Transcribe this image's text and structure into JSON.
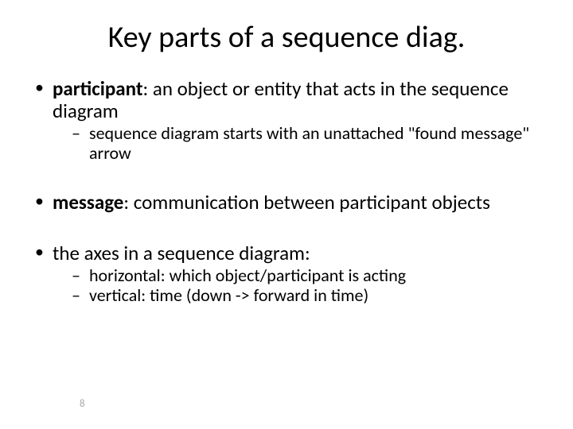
{
  "title": "Key parts of a sequence diag.",
  "bullets": {
    "b1_term": "participant",
    "b1_rest": ": an object or entity that acts in the sequence diagram",
    "b1_sub1": "sequence diagram starts with an unattached \"found message\" arrow",
    "b2_term": "message",
    "b2_rest": ": communication between participant objects",
    "b3": "the axes in a sequence diagram:",
    "b3_sub1": "horizontal: which object/participant is acting",
    "b3_sub2": "vertical: time (down -> forward in time)"
  },
  "page_number": "8",
  "styling": {
    "background_color": "#ffffff",
    "text_color": "#000000",
    "page_number_color": "#a6a6a6",
    "title_fontsize": 38,
    "body_fontsize": 25,
    "sub_fontsize": 22,
    "font_family": "Calibri"
  }
}
